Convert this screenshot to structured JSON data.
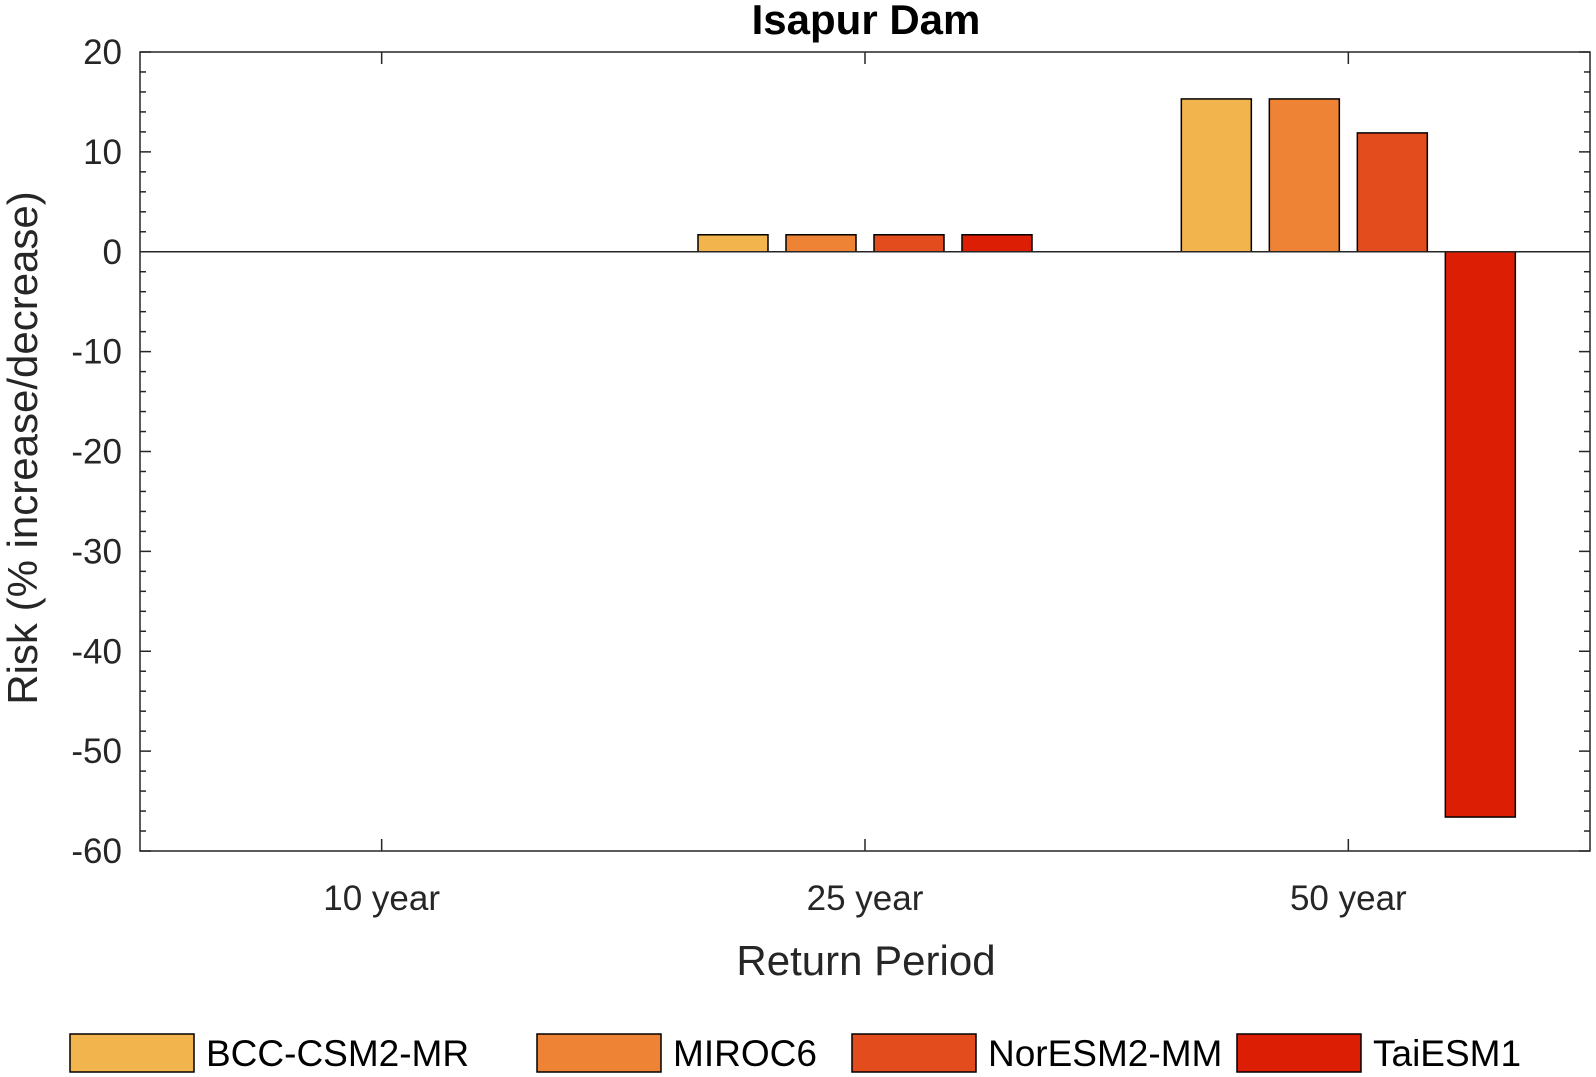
{
  "chart_data": {
    "type": "bar",
    "title": "Isapur Dam",
    "xlabel": "Return Period",
    "ylabel": "Risk (% increase/decrease)",
    "categories": [
      "10 year",
      "25 year",
      "50 year"
    ],
    "ylim": [
      -60,
      20
    ],
    "yticks": [
      20,
      10,
      0,
      -10,
      -20,
      -30,
      -40,
      -50,
      -60
    ],
    "grid": false,
    "legend_position": "bottom",
    "series": [
      {
        "name": "BCC-CSM2-MR",
        "color": "#F2B44D",
        "values": [
          0,
          1.7,
          15.3
        ]
      },
      {
        "name": "MIROC6",
        "color": "#EE8336",
        "values": [
          0,
          1.7,
          15.3
        ]
      },
      {
        "name": "NorESM2-MM",
        "color": "#E34D1E",
        "values": [
          0,
          1.7,
          11.9
        ]
      },
      {
        "name": "TaiESM1",
        "color": "#DC1F04",
        "values": [
          0,
          1.7,
          -56.6
        ]
      }
    ]
  }
}
